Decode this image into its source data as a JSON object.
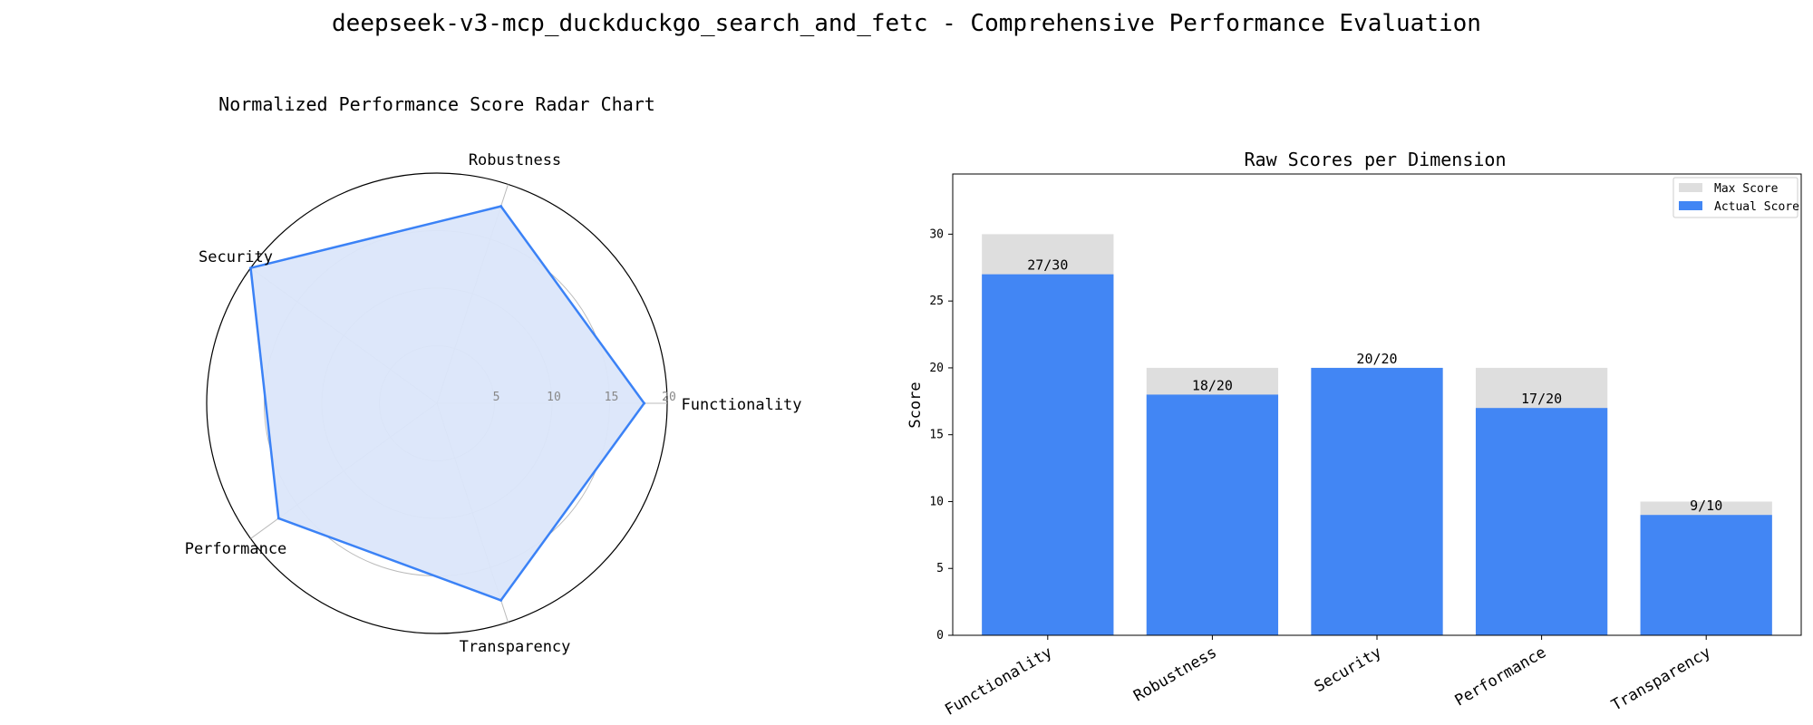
{
  "title": "deepseek-v3-mcp_duckduckgo_search_and_fetc - Comprehensive Performance Evaluation",
  "colors": {
    "actual": "#4286f4",
    "max": "#dedede",
    "radar_line": "#3b82f6",
    "radar_fill": "#dbe6fa"
  },
  "chart_data": [
    {
      "type": "radar",
      "title": "Normalized Performance Score Radar Chart",
      "axes": [
        "Functionality",
        "Robustness",
        "Security",
        "Performance",
        "Transparency"
      ],
      "values": [
        18,
        18,
        20,
        17,
        18
      ],
      "r_ticks": [
        5,
        10,
        15,
        20
      ],
      "rlim": [
        0,
        20
      ],
      "grid": true
    },
    {
      "type": "bar",
      "title": "Raw Scores per Dimension",
      "ylabel": "Score",
      "categories": [
        "Functionality",
        "Robustness",
        "Security",
        "Performance",
        "Transparency"
      ],
      "series": [
        {
          "name": "Max Score",
          "values": [
            30,
            20,
            20,
            20,
            10
          ]
        },
        {
          "name": "Actual Score",
          "values": [
            27,
            18,
            20,
            17,
            9
          ]
        }
      ],
      "data_labels": [
        "27/30",
        "18/20",
        "20/20",
        "17/20",
        "9/10"
      ],
      "yticks": [
        0,
        5,
        10,
        15,
        20,
        25,
        30
      ],
      "ylim": [
        0,
        34.5
      ],
      "legend": "top-right"
    }
  ]
}
